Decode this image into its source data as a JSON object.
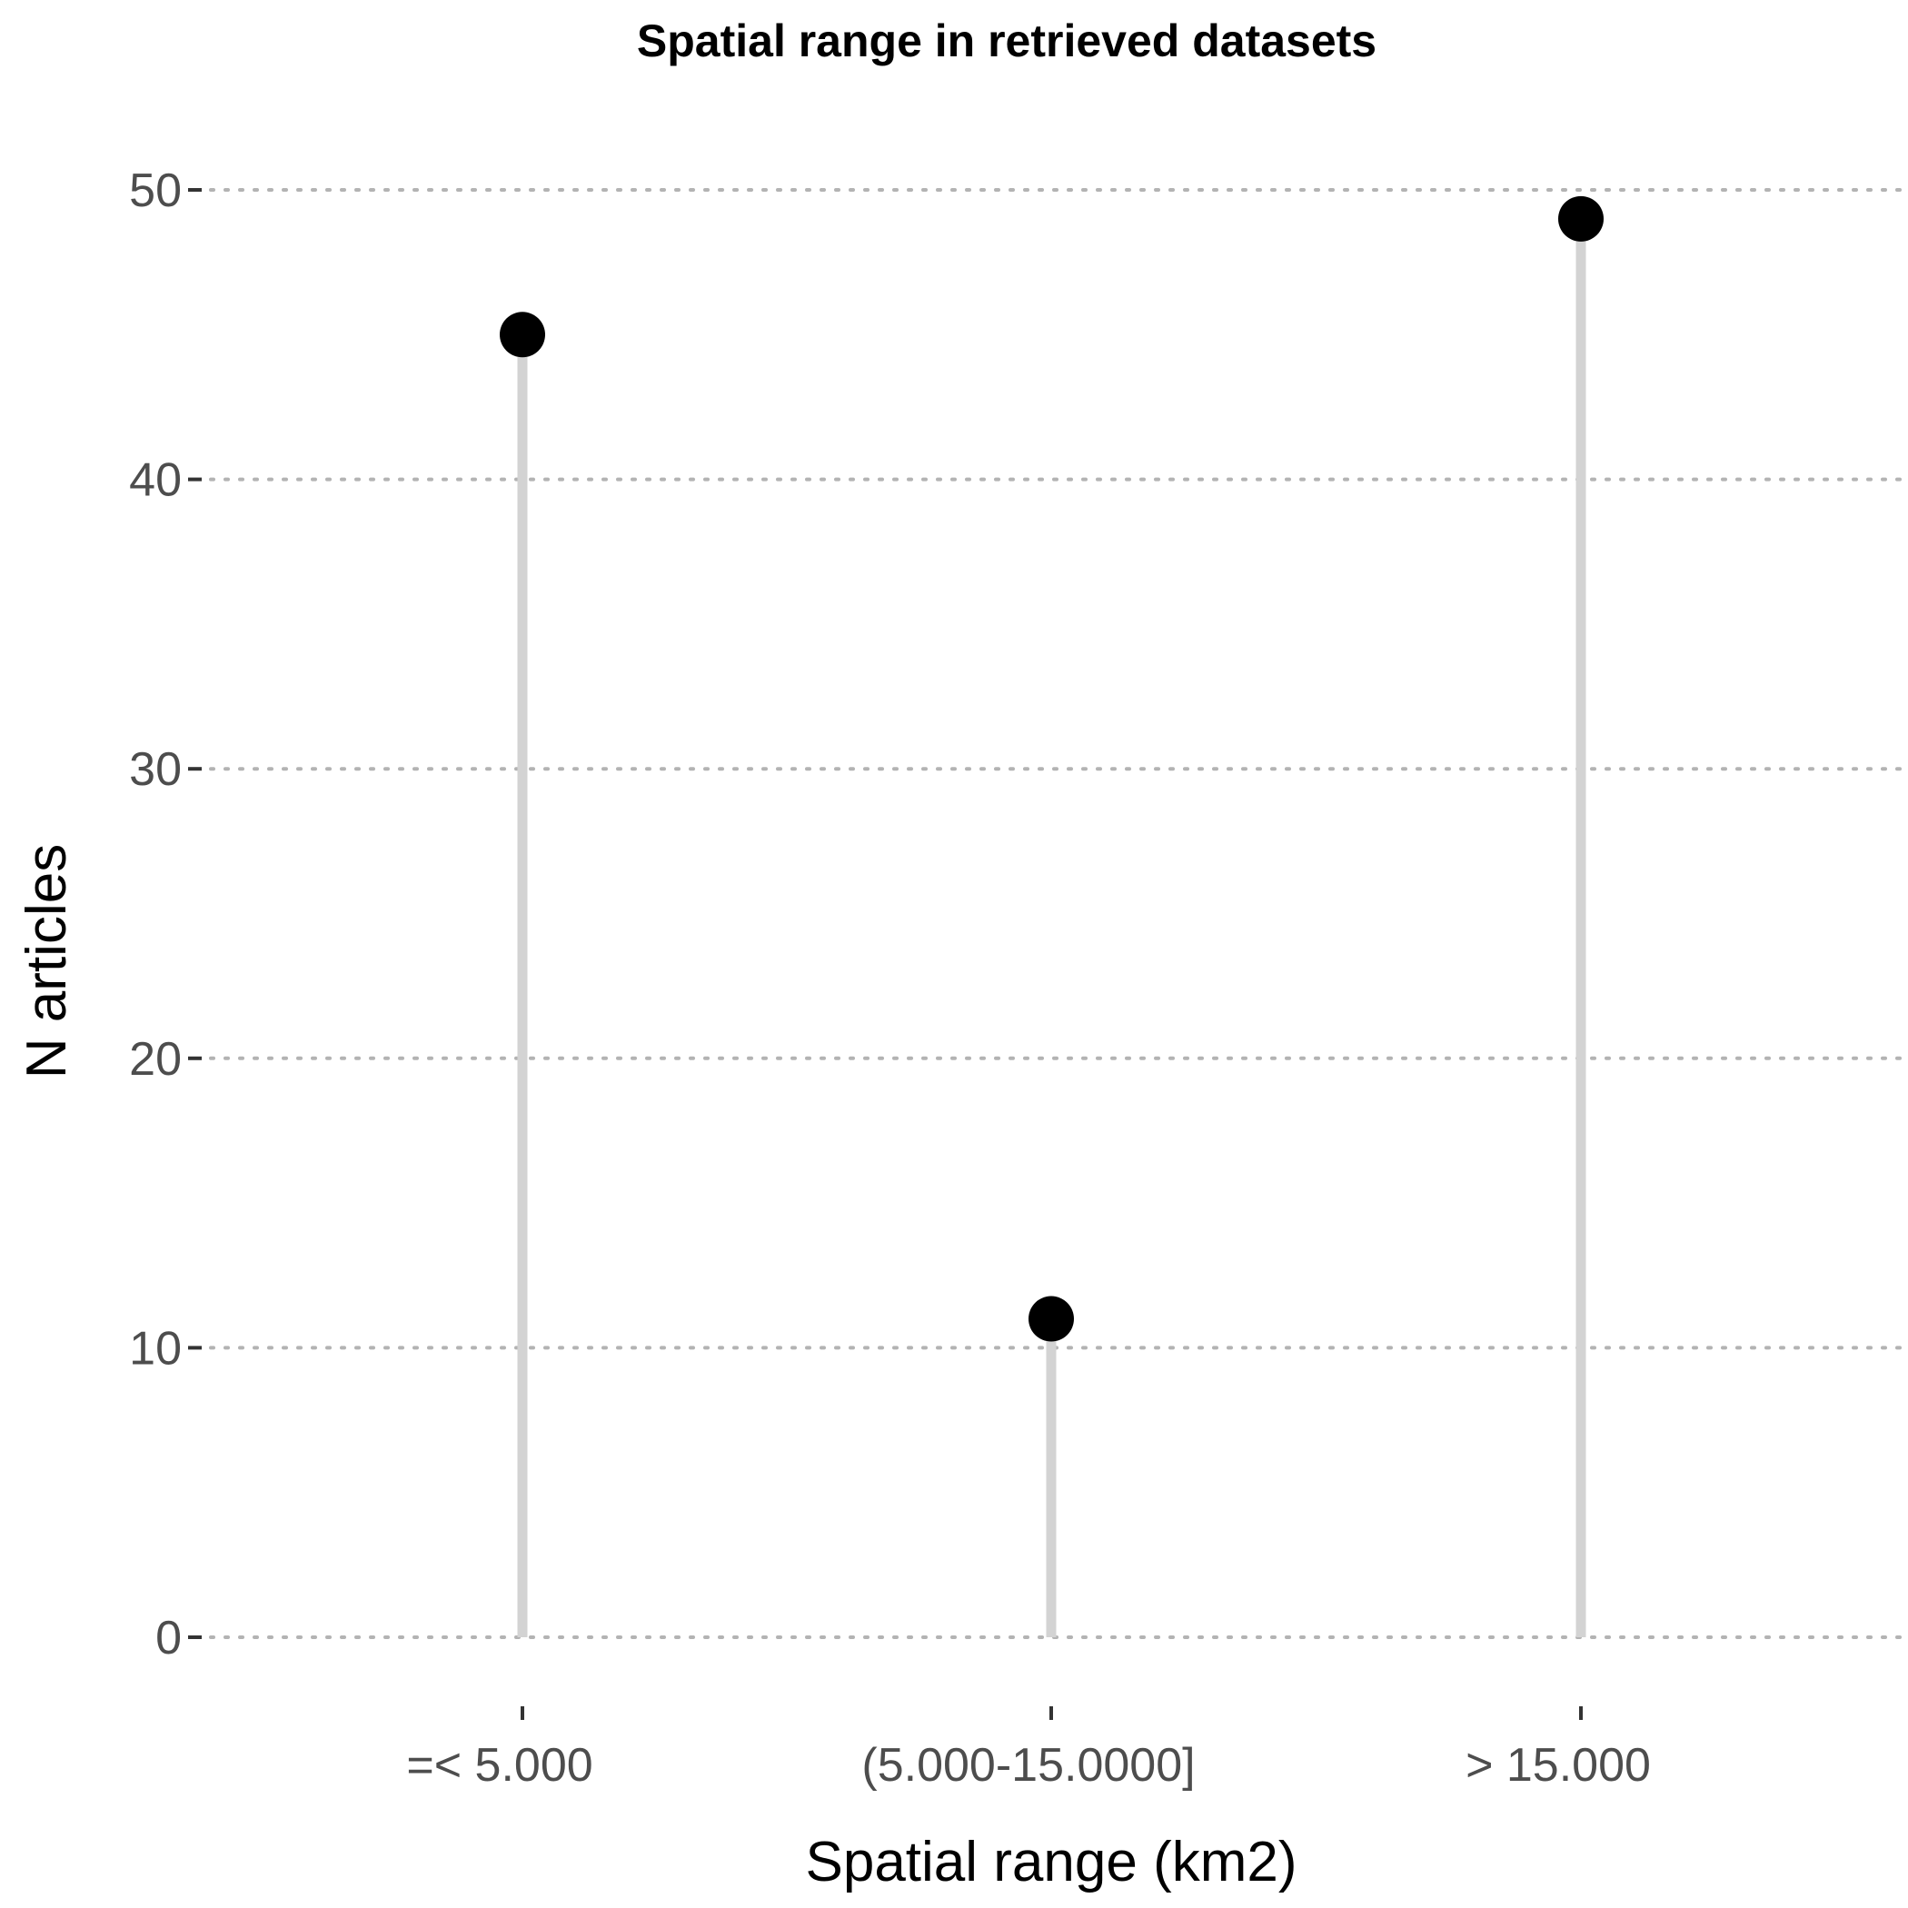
{
  "chart_data": {
    "type": "lollipop",
    "title": "Spatial range in retrieved datasets",
    "xlabel": "Spatial range (km2)",
    "ylabel": "N articles",
    "categories": [
      "=< 5.000",
      "(5.000-15.0000]",
      "> 15.000"
    ],
    "values": [
      45,
      11,
      49
    ],
    "ylim": [
      0,
      50
    ],
    "yticks": [
      0,
      10,
      20,
      30,
      40,
      50
    ],
    "grid": "horizontal dotted",
    "legend": "none",
    "colors": {
      "point": "#000000",
      "stem": "#d3d3d3",
      "grid": "#b3b3b3",
      "tick_label": "#4d4d4d"
    }
  }
}
